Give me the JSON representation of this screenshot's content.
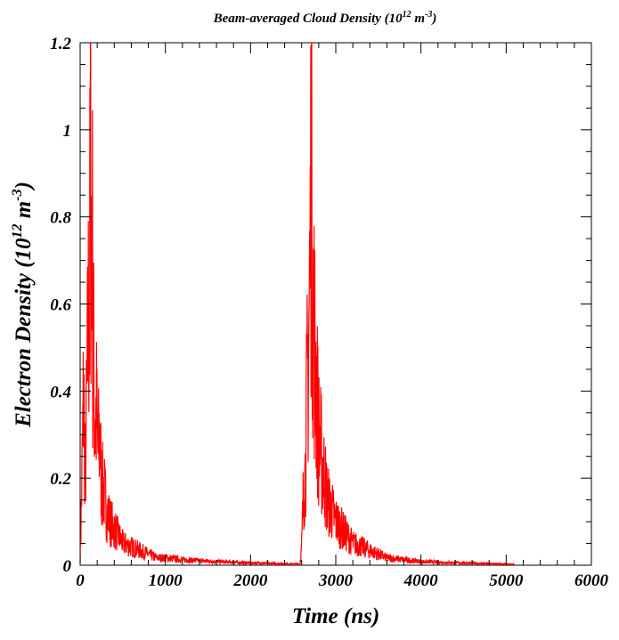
{
  "chart_data": {
    "type": "line",
    "title": "Beam-averaged Cloud Density (10",
    "title_sup1": "12",
    "title_mid": " m",
    "title_sup2": "-3",
    "title_end": ")",
    "xlabel": "Time (ns)",
    "ylabel": "Electron Density (10",
    "ylabel_sup1": "12",
    "ylabel_mid": " m",
    "ylabel_sup2": "-3",
    "ylabel_end": ")",
    "xlim": [
      0,
      6000
    ],
    "ylim": [
      0,
      1.2
    ],
    "x_ticks": [
      0,
      1000,
      2000,
      3000,
      4000,
      5000,
      6000
    ],
    "x_tick_labels": [
      "0",
      "1000",
      "2000",
      "3000",
      "4000",
      "5000",
      "6000"
    ],
    "y_ticks": [
      0,
      0.2,
      0.4,
      0.6,
      0.8,
      1.0,
      1.2
    ],
    "y_tick_labels": [
      "0",
      "0.2",
      "0.4",
      "0.6",
      "0.8",
      "1",
      "1.2"
    ],
    "grid": false,
    "line_color": "#ff0000",
    "series": [
      {
        "x": [
          0,
          20,
          40,
          60,
          80,
          100,
          110,
          120,
          130,
          140,
          150,
          160,
          175,
          190,
          210,
          230,
          250,
          280,
          310,
          350,
          400,
          450,
          500,
          600,
          700,
          800,
          900,
          1000,
          1200,
          1400,
          1600,
          1800,
          2000,
          2200,
          2400,
          2580,
          2600,
          2620,
          2640,
          2660,
          2680,
          2700,
          2715,
          2730,
          2745,
          2760,
          2780,
          2800,
          2830,
          2860,
          2900,
          2950,
          3000,
          3100,
          3200,
          3300,
          3400,
          3500,
          3600,
          3800,
          4000,
          4200,
          4500,
          4800,
          5100
        ],
        "y": [
          0.01,
          0.22,
          0.47,
          0.25,
          0.45,
          0.72,
          0.62,
          1.2,
          0.9,
          1.05,
          0.5,
          0.55,
          0.35,
          0.42,
          0.3,
          0.35,
          0.22,
          0.2,
          0.15,
          0.12,
          0.1,
          0.08,
          0.06,
          0.05,
          0.04,
          0.03,
          0.02,
          0.02,
          0.015,
          0.012,
          0.01,
          0.008,
          0.006,
          0.005,
          0.004,
          0.003,
          0.05,
          0.2,
          0.25,
          0.45,
          0.6,
          0.85,
          1.2,
          0.75,
          0.65,
          0.55,
          0.45,
          0.35,
          0.3,
          0.25,
          0.18,
          0.15,
          0.12,
          0.09,
          0.06,
          0.05,
          0.04,
          0.03,
          0.02,
          0.015,
          0.01,
          0.008,
          0.006,
          0.004,
          0.002
        ]
      }
    ]
  }
}
